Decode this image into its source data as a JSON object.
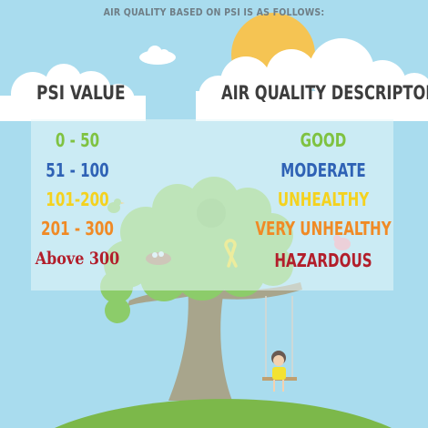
{
  "header": {
    "title": "AIR QUALITY BASED ON PSI IS AS FOLLOWS:"
  },
  "columns": {
    "left": "PSI VALUE",
    "right": "AIR QUALITY DESCRIPTOR"
  },
  "rows": [
    {
      "range": "0 - 50",
      "descriptor": "GOOD",
      "color": "#7fc241"
    },
    {
      "range": "51 - 100",
      "descriptor": "MODERATE",
      "color": "#2f62b5"
    },
    {
      "range": "101-200",
      "descriptor": "UNHEALTHY",
      "color": "#f4d21f"
    },
    {
      "range": "201 - 300",
      "descriptor": "VERY UNHEALTHY",
      "color": "#f08a25"
    },
    {
      "range": "Above 300",
      "descriptor": "HAZARDOUS",
      "color": "#b21e2b"
    }
  ],
  "colors": {
    "sky": "#a9dcee",
    "sun": "#f5c453",
    "cloud": "#ffffff",
    "tree_foliage": "#8ccc6a",
    "tree_trunk": "#a8a58c",
    "grass": "#7cb84a"
  },
  "icons": [
    "sun-icon",
    "cloud-icon",
    "tree-icon",
    "bird-icon",
    "nest-icon",
    "ribbon-icon",
    "swing-icon",
    "child-icon"
  ]
}
